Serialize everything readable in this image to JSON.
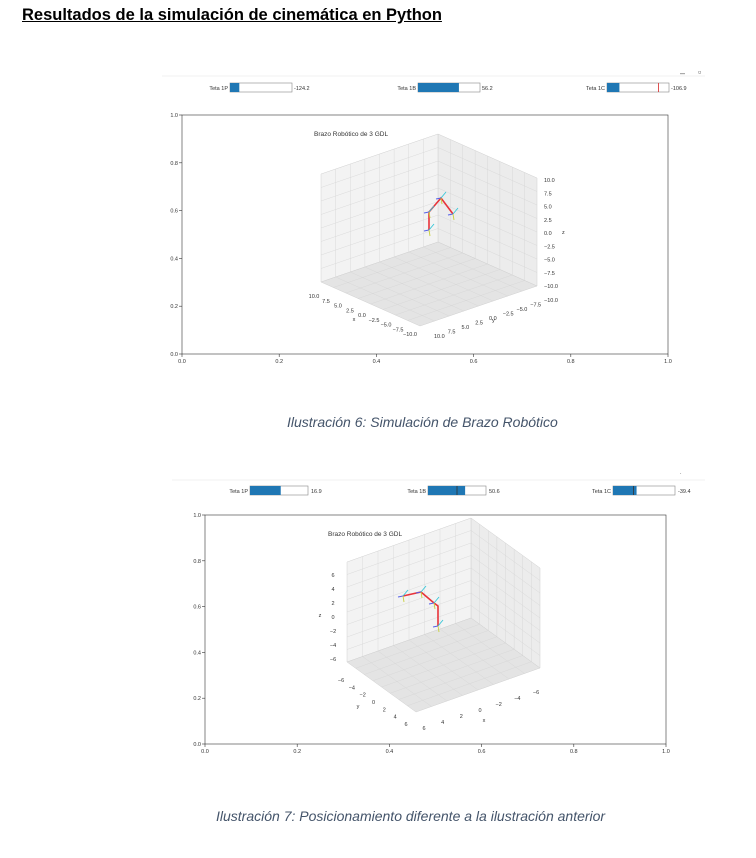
{
  "document": {
    "heading": "Resultados de la simulación de cinemática en Python",
    "caption_1": "Ilustración 6: Simulación de Brazo Robótico",
    "caption_2": "Ilustración 7: Posicionamiento diferente a la ilustración anterior"
  },
  "window_controls": {
    "minimize": "–",
    "restore": "▫"
  },
  "figure_1": {
    "plot_title": "Brazo Robótico de 3 GDL",
    "sliders": [
      {
        "label": "Teta 1P",
        "value": "-124.2",
        "fill": 0.15
      },
      {
        "label": "Teta 1B",
        "value": "56.2",
        "fill": 0.66
      },
      {
        "label": "Teta 1C",
        "value": "-106.9",
        "fill": 0.2,
        "marker": 0.83
      }
    ],
    "x_ticks": [
      "0.0",
      "0.2",
      "0.4",
      "0.6",
      "0.8",
      "1.0"
    ],
    "y_ticks": [
      "0.0",
      "0.2",
      "0.4",
      "0.6",
      "0.8",
      "1.0"
    ],
    "z3d_ticks": [
      "10.0",
      "7.5",
      "5.0",
      "2.5",
      "0.0",
      "−2.5",
      "−5.0",
      "−7.5",
      "−10.0"
    ],
    "x3d_ticks": [
      "10.0",
      "7.5",
      "5.0",
      "2.5",
      "0.0",
      "−2.5",
      "−5.0",
      "−7.5",
      "−10.0"
    ],
    "y3d_ticks": [
      "10.0",
      "7.5",
      "5.0",
      "2.5",
      "0.0",
      "−2.5",
      "−5.0",
      "−7.5",
      "−10.0"
    ],
    "axis_x": "x",
    "axis_y": "y",
    "axis_z": "z"
  },
  "figure_2": {
    "plot_title": "Brazo Robótico de 3 GDL",
    "sliders": [
      {
        "label": "Teta 1P",
        "value": "16.9",
        "fill": 0.53
      },
      {
        "label": "Teta 1B",
        "value": "50.6",
        "fill": 0.64,
        "marker": 0.5
      },
      {
        "label": "Teta 1C",
        "value": "-39.4",
        "fill": 0.38,
        "marker": 0.33
      }
    ],
    "x_ticks": [
      "0.0",
      "0.2",
      "0.4",
      "0.6",
      "0.8",
      "1.0"
    ],
    "y_ticks": [
      "0.0",
      "0.2",
      "0.4",
      "0.6",
      "0.8",
      "1.0"
    ],
    "z3d_ticks": [
      "6",
      "4",
      "2",
      "0",
      "−2",
      "−4",
      "−6"
    ],
    "y3d_ticks": [
      "−6",
      "−4",
      "−2",
      "0",
      "2",
      "4",
      "6"
    ],
    "x3d_ticks": [
      "6",
      "4",
      "2",
      "0",
      "−2",
      "−4",
      "−6"
    ],
    "axis_x": "x",
    "axis_y": "y",
    "axis_z": "z"
  }
}
